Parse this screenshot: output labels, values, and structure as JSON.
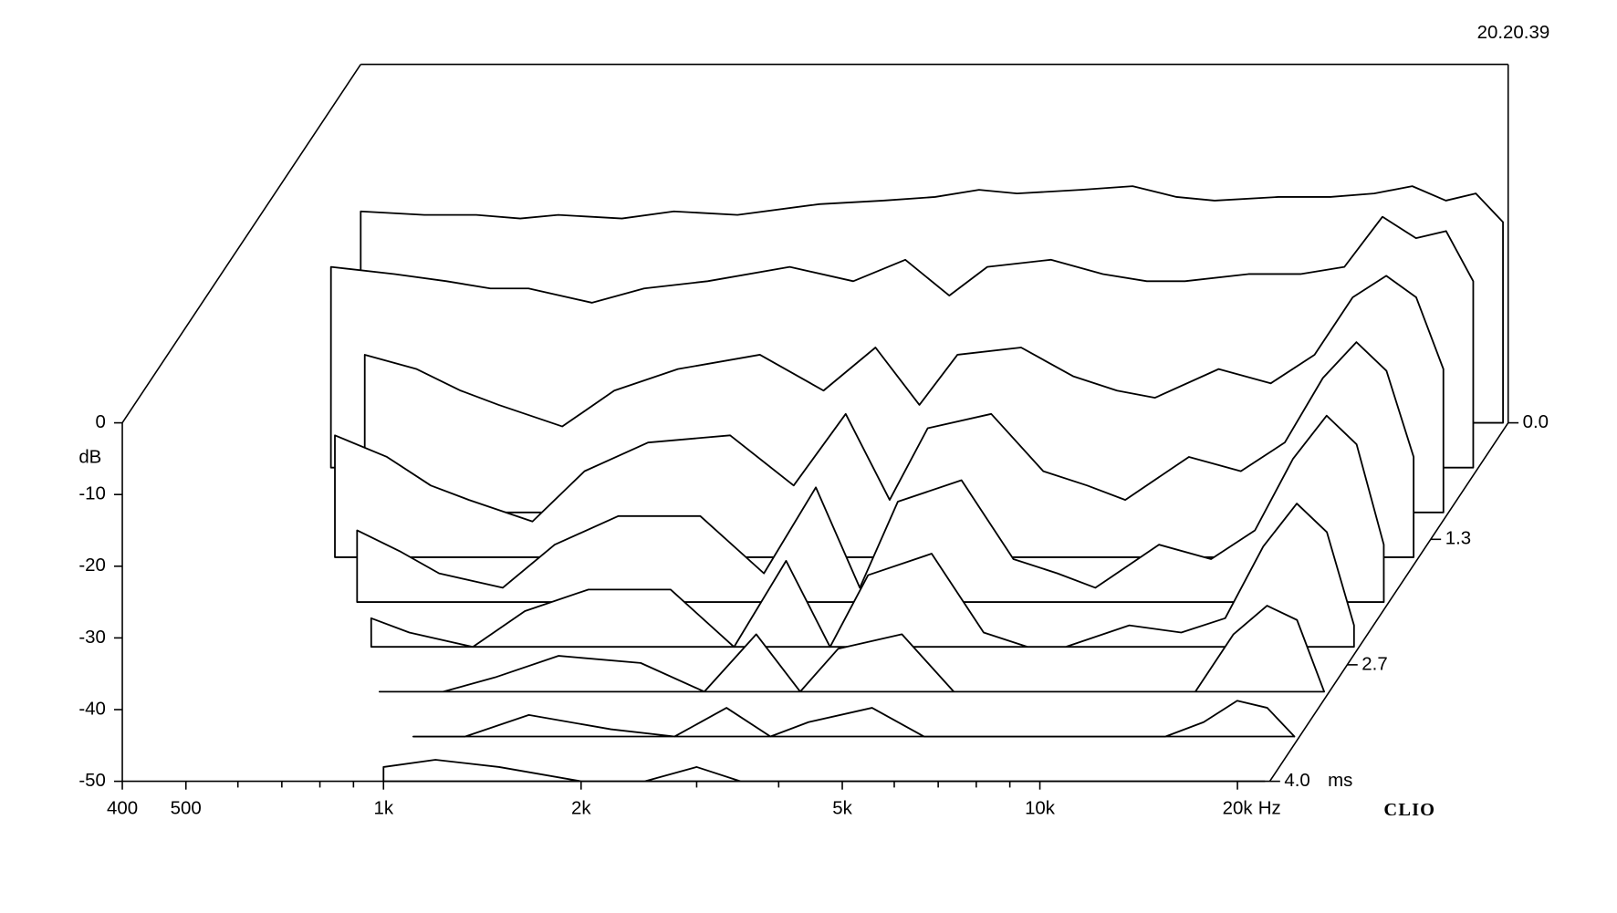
{
  "chart_data": {
    "type": "waterfall",
    "timestamp": "20.20.39",
    "brand": "CLIO",
    "ylabel": "dB",
    "xunit": "Hz",
    "zunit": "ms",
    "color": "#000000",
    "xscale": "log",
    "x": [
      400,
      500,
      600,
      700,
      800,
      1000,
      1200,
      1500,
      2000,
      2500,
      3000,
      3500,
      4000,
      5000,
      6000,
      7000,
      8000,
      10000,
      12000,
      14000,
      16000,
      18000,
      20000,
      22000
    ],
    "xlim": [
      400,
      22400
    ],
    "xticks": [
      400,
      500,
      {
        "value": 1000,
        "label": "1k"
      },
      {
        "value": 2000,
        "label": "2k"
      },
      {
        "value": 5000,
        "label": "5k"
      },
      {
        "value": 10000,
        "label": "10k"
      },
      {
        "value": 20000,
        "label": "20k"
      }
    ],
    "xminorticks": [
      600,
      700,
      800,
      900,
      3000,
      4000,
      6000,
      7000,
      8000,
      9000
    ],
    "ylim": [
      -50,
      0
    ],
    "yticks": [
      0,
      -10,
      -20,
      -30,
      -40,
      -50
    ],
    "zlim": [
      0,
      4
    ],
    "zticks": [
      {
        "value": 0,
        "label": "0.0"
      },
      1.3,
      2.7,
      {
        "value": 4,
        "label": "4.0"
      }
    ],
    "slices": [
      {
        "time": 0,
        "values": [
          -20.5,
          -21,
          -21,
          -21.5,
          -21,
          -21.5,
          -20.5,
          -21,
          -19.5,
          -19,
          -18.5,
          -17.5,
          -18,
          -17.5,
          -17,
          -18.5,
          -19,
          -18.5,
          -18.5,
          -18,
          -17,
          -19,
          -18,
          -22
        ]
      },
      {
        "time": 0.5,
        "values": [
          -22,
          -23,
          -24,
          -25,
          -25,
          -27,
          -25,
          -24,
          -22,
          -24,
          -21,
          -26,
          -22,
          -21,
          -23,
          -24,
          -24,
          -23,
          -23,
          -22,
          -15,
          -18,
          -17,
          -24
        ]
      },
      {
        "time": 1,
        "values": [
          null,
          -28,
          -30,
          -33,
          -35,
          -38,
          -33,
          -30,
          -28,
          -33,
          -27,
          -35,
          -28,
          -27,
          -31,
          -33,
          -34,
          -30,
          -32,
          -28,
          -20,
          -17,
          -20,
          -30
        ]
      },
      {
        "time": 1.5,
        "values": [
          null,
          -33,
          -36,
          -40,
          -42,
          -45,
          -38,
          -34,
          -33,
          -40,
          -30,
          -42,
          -32,
          -30,
          -38,
          -40,
          -42,
          -36,
          -38,
          -34,
          -25,
          -20,
          -24,
          -36
        ]
      },
      {
        "time": 2,
        "values": [
          null,
          null,
          -40,
          -43,
          -46,
          -48,
          -42,
          -38,
          -38,
          -46,
          -34,
          -48,
          -36,
          -33,
          -44,
          -46,
          -48,
          -42,
          -44,
          -40,
          -30,
          -24,
          -28,
          -42
        ]
      },
      {
        "time": 2.5,
        "values": [
          null,
          null,
          null,
          -46,
          -48,
          -50,
          -45,
          -42,
          -42,
          -50,
          -38,
          -50,
          -40,
          -37,
          -48,
          -50,
          -50,
          -47,
          -48,
          -46,
          -36,
          -30,
          -34,
          -47
        ]
      },
      {
        "time": 3,
        "values": [
          null,
          null,
          null,
          null,
          -50,
          -50,
          -48,
          -45,
          -46,
          -50,
          -42,
          -50,
          -44,
          -42,
          -50,
          -50,
          -50,
          -50,
          -50,
          -50,
          -42,
          -38,
          -40,
          -50
        ]
      },
      {
        "time": 3.5,
        "values": [
          null,
          null,
          null,
          null,
          null,
          -50,
          -50,
          -47,
          -49,
          -50,
          -46,
          -50,
          -48,
          -46,
          -50,
          -50,
          -50,
          -50,
          -50,
          -50,
          -48,
          -45,
          -46,
          -50
        ]
      },
      {
        "time": 4,
        "values": [
          null,
          null,
          null,
          null,
          null,
          -48,
          -47,
          -48,
          -50,
          -50,
          -48,
          -50,
          -50,
          -50,
          -50,
          -50,
          -50,
          -50,
          -50,
          -50,
          -50,
          -50,
          -50,
          -50
        ]
      }
    ]
  }
}
